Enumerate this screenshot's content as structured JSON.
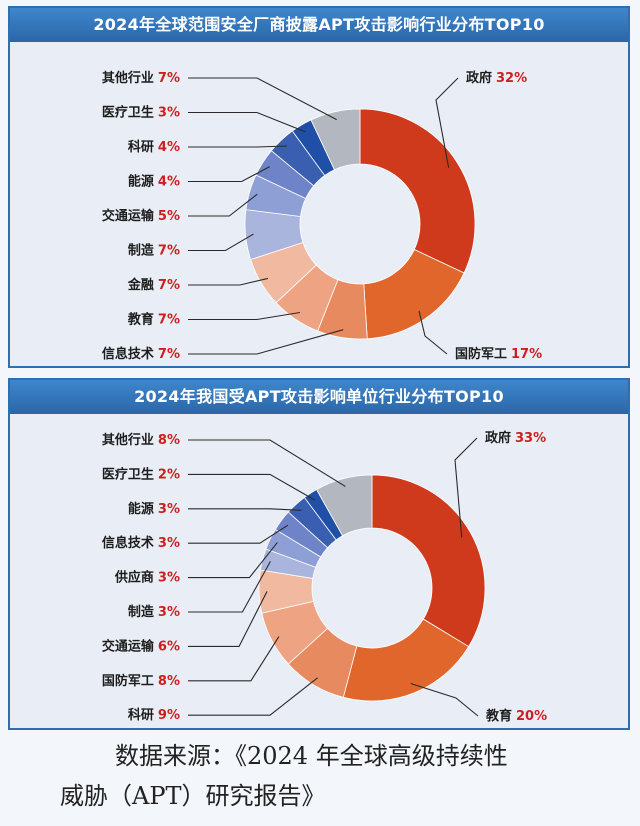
{
  "colors": {
    "banner": "#2f6fb1",
    "label_pct": "#cc1f1f"
  },
  "chart_data": [
    {
      "type": "pie",
      "donut": true,
      "title": "2024年全球范围安全厂商披露APT攻击影响行业分布TOP10",
      "slices": [
        {
          "label": "政府",
          "value": 32,
          "color": "#cf3a1c"
        },
        {
          "label": "国防军工",
          "value": 17,
          "color": "#e0662c"
        },
        {
          "label": "信息技术",
          "value": 7,
          "color": "#e88a60"
        },
        {
          "label": "教育",
          "value": 7,
          "color": "#eea383"
        },
        {
          "label": "金融",
          "value": 7,
          "color": "#f1b9a0"
        },
        {
          "label": "制造",
          "value": 7,
          "color": "#a9b5dd"
        },
        {
          "label": "交通运输",
          "value": 5,
          "color": "#8e9fd6"
        },
        {
          "label": "能源",
          "value": 4,
          "color": "#6f83c8"
        },
        {
          "label": "科研",
          "value": 4,
          "color": "#3a5fb0"
        },
        {
          "label": "医疗卫生",
          "value": 3,
          "color": "#1f4fa6"
        },
        {
          "label": "其他行业",
          "value": 7,
          "color": "#b3b8c0"
        }
      ]
    },
    {
      "type": "pie",
      "donut": true,
      "title": "2024年我国受APT攻击影响单位行业分布TOP10",
      "slices": [
        {
          "label": "政府",
          "value": 33,
          "color": "#cf3a1c"
        },
        {
          "label": "教育",
          "value": 20,
          "color": "#e0662c"
        },
        {
          "label": "科研",
          "value": 9,
          "color": "#e88a60"
        },
        {
          "label": "国防军工",
          "value": 8,
          "color": "#eea383"
        },
        {
          "label": "交通运输",
          "value": 6,
          "color": "#f1b9a0"
        },
        {
          "label": "制造",
          "value": 3,
          "color": "#a9b5dd"
        },
        {
          "label": "供应商",
          "value": 3,
          "color": "#8e9fd6"
        },
        {
          "label": "信息技术",
          "value": 3,
          "color": "#6f83c8"
        },
        {
          "label": "能源",
          "value": 3,
          "color": "#3a5fb0"
        },
        {
          "label": "医疗卫生",
          "value": 2,
          "color": "#1f4fa6"
        },
        {
          "label": "其他行业",
          "value": 8,
          "color": "#b3b8c0"
        }
      ]
    }
  ],
  "source": {
    "line1": "数据来源：《2024 年全球高级持续性",
    "line2": "威胁（APT）研究报告》"
  }
}
